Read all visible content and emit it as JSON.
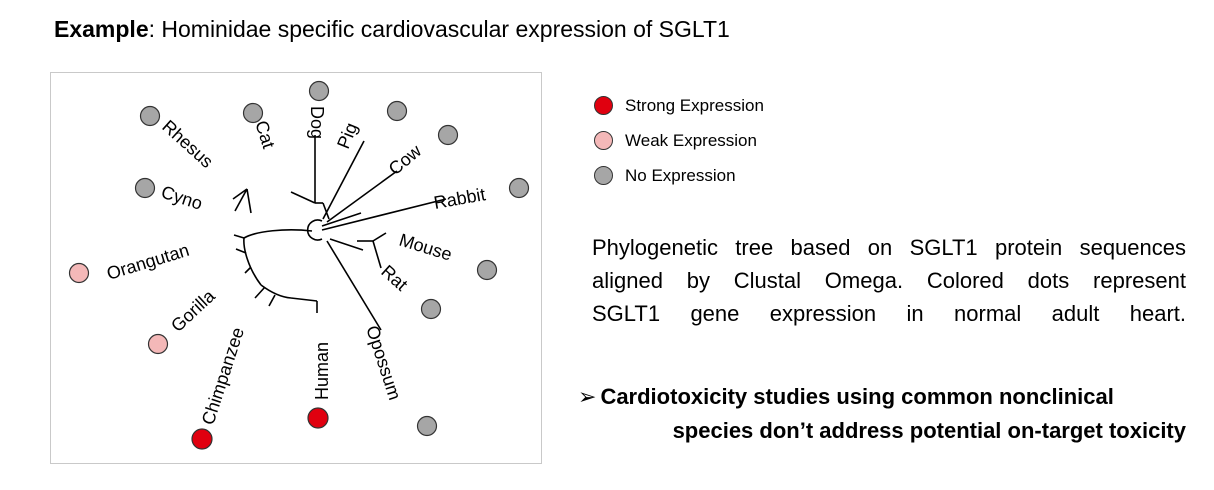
{
  "header": {
    "title_bold": "Example",
    "title_rest": ": Hominidae specific cardiovascular expression of SGLT1"
  },
  "legend": [
    {
      "label": "Strong Expression",
      "color": "#e0000f"
    },
    {
      "label": "Weak Expression",
      "color": "#f4b8b8"
    },
    {
      "label": "No Expression",
      "color": "#a6a6a6"
    }
  ],
  "tree": {
    "species": [
      {
        "name": "Rhesus",
        "expression": "No Expression"
      },
      {
        "name": "Cat",
        "expression": "No Expression"
      },
      {
        "name": "Dog",
        "expression": "No Expression"
      },
      {
        "name": "Pig",
        "expression": "No Expression"
      },
      {
        "name": "Cow",
        "expression": "No Expression"
      },
      {
        "name": "Rabbit",
        "expression": "No Expression"
      },
      {
        "name": "Cyno",
        "expression": "No Expression"
      },
      {
        "name": "Mouse",
        "expression": "No Expression"
      },
      {
        "name": "Rat",
        "expression": "No Expression"
      },
      {
        "name": "Orangutan",
        "expression": "Weak Expression"
      },
      {
        "name": "Gorilla",
        "expression": "Weak Expression"
      },
      {
        "name": "Opossum",
        "expression": "No Expression"
      },
      {
        "name": "Human",
        "expression": "Strong Expression"
      },
      {
        "name": "Chimpanzee",
        "expression": "Strong Expression"
      }
    ]
  },
  "description": {
    "lines": [
      "Phylogenetic tree based on SGLT1 protein sequences",
      "aligned by Clustal Omega. Colored dots represent",
      "SGLT1 gene expression in normal adult heart."
    ]
  },
  "conclusion": {
    "arrow": "➢",
    "line1": "Cardiotoxicity studies using common nonclinical",
    "line2": "species don’t address potential on-target toxicity"
  }
}
